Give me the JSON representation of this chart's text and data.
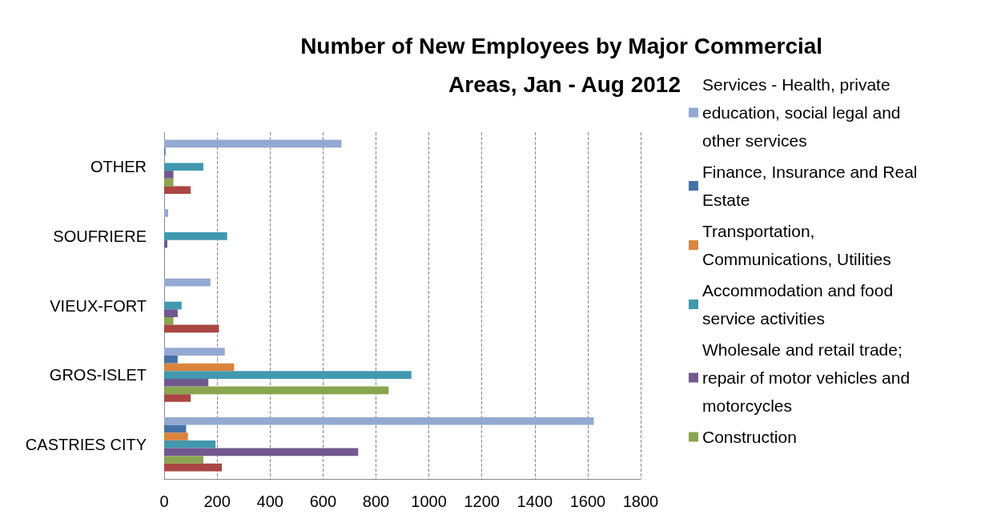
{
  "chart_data": {
    "type": "bar",
    "orientation": "horizontal",
    "title": "Number of New Employees by Major Commercial Areas, Jan - Aug 2012",
    "categories": [
      "OTHER",
      "SOUFRIERE",
      "VIEUX-FORT",
      "GROS-ISLET",
      "CASTRIES CITY"
    ],
    "series": [
      {
        "name": "Services - Health, private education, social legal and other services",
        "color": "#94a9d2",
        "values": [
          670,
          15,
          175,
          229,
          1623
        ]
      },
      {
        "name": "Finance, Insurance and Real Estate",
        "color": "#4572a7",
        "values": [
          5,
          0,
          0,
          51,
          83
        ]
      },
      {
        "name": "Transportation, Communications, Utilities",
        "color": "#db843d",
        "values": [
          0,
          0,
          0,
          264,
          90
        ]
      },
      {
        "name": "Accommodation and food service activities",
        "color": "#4198af",
        "values": [
          148,
          238,
          66,
          934,
          194
        ]
      },
      {
        "name": "Wholesale and retail trade; repair of motor vehicles and motorcycles",
        "color": "#71588f",
        "values": [
          35,
          12,
          51,
          167,
          733
        ]
      },
      {
        "name": "Construction",
        "color": "#89a54e",
        "values": [
          35,
          0,
          35,
          848,
          148
        ]
      },
      {
        "color": "#aa4643",
        "values": [
          100,
          0,
          207,
          100,
          218
        ]
      }
    ],
    "xlim": [
      0,
      1800
    ],
    "xticks": [
      0,
      200,
      400,
      600,
      800,
      1000,
      1200,
      1400,
      1600,
      1800
    ],
    "grid": "x",
    "legend": "right"
  }
}
